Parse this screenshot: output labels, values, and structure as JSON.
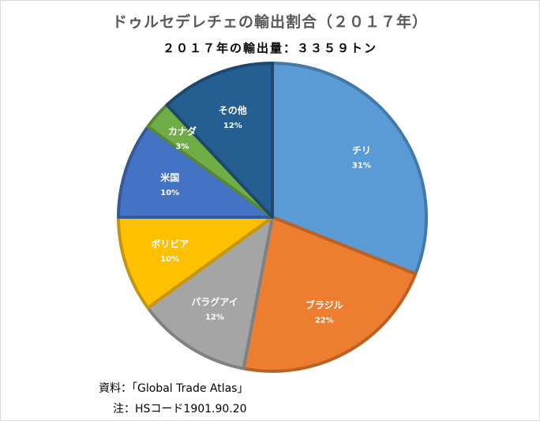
{
  "chart": {
    "title": "ドゥルセデレチェの輸出割合（２０１７年）",
    "subtitle": "２０１７年の輸出量：３３５９トン"
  },
  "footnotes": {
    "source": "資料：「Global Trade Atlas」",
    "note": "注：HSコード1901.90.20"
  },
  "chart_data": {
    "type": "pie",
    "title": "ドゥルセデレチェの輸出割合（２０１７年）",
    "subtitle": "２０１７年の輸出量：３３５９トン",
    "unit": "%",
    "slices": [
      {
        "label": "チリ",
        "value": 31,
        "display": "31%",
        "color": "#5b9bd5"
      },
      {
        "label": "ブラジル",
        "value": 22,
        "display": "22%",
        "color": "#ed7d31"
      },
      {
        "label": "パラグアイ",
        "value": 12,
        "display": "12%",
        "color": "#a5a5a5"
      },
      {
        "label": "ボリビア",
        "value": 10,
        "display": "10%",
        "color": "#ffc000"
      },
      {
        "label": "米国",
        "value": 10,
        "display": "10%",
        "color": "#4472c4"
      },
      {
        "label": "カナダ",
        "value": 3,
        "display": "3%",
        "color": "#70ad47"
      },
      {
        "label": "その他",
        "value": 12,
        "display": "12%",
        "color": "#255e91"
      }
    ],
    "legend": "none",
    "data_labels": "inside"
  }
}
